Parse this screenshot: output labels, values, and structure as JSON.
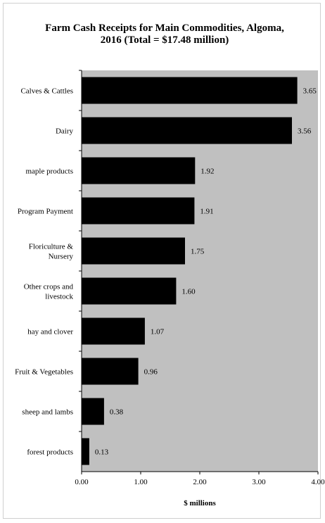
{
  "chart_data": {
    "type": "bar",
    "orientation": "horizontal",
    "title_lines": [
      "Farm Cash Receipts for Main Commodities, Algoma,",
      "2016 (Total = $17.48 million)"
    ],
    "categories": [
      [
        "Calves & Cattles"
      ],
      [
        "Dairy"
      ],
      [
        "maple products"
      ],
      [
        "Program Payment"
      ],
      [
        "Floriculture &",
        "Nursery"
      ],
      [
        "Other crops and",
        "livestock"
      ],
      [
        "hay and clover"
      ],
      [
        "Fruit & Vegetables"
      ],
      [
        "sheep and lambs"
      ],
      [
        "forest products"
      ]
    ],
    "values": [
      3.65,
      3.56,
      1.92,
      1.91,
      1.75,
      1.6,
      1.07,
      0.96,
      0.38,
      0.13
    ],
    "value_labels": [
      "3.65",
      "3.56",
      "1.92",
      "1.91",
      "1.75",
      "1.60",
      "1.07",
      "0.96",
      "0.38",
      "0.13"
    ],
    "xlabel": "$ millions",
    "xlim": [
      0,
      4
    ],
    "xticks": [
      0,
      1,
      2,
      3,
      4
    ],
    "xtick_labels": [
      "0.00",
      "1.00",
      "2.00",
      "3.00",
      "4.00"
    ],
    "grid": false,
    "legend": "none",
    "colors": {
      "bar": "#000000",
      "plot_background": "#c0c0c0",
      "axis": "#000000"
    }
  }
}
